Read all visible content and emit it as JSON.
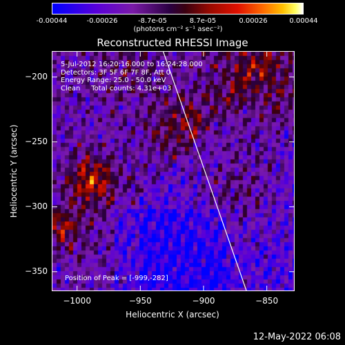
{
  "colorbar": {
    "ticks": [
      "-0.00044",
      "-0.00026",
      "-8.7e-05",
      "8.7e-05",
      "0.00026",
      "0.00044"
    ],
    "unit_label": "(photons cm⁻² s⁻¹ asec⁻²)"
  },
  "chart_data": {
    "type": "heatmap",
    "title": "Reconstructed RHESSI Image",
    "xlabel": "Heliocentric X (arcsec)",
    "ylabel": "Heliocentric Y (arcsec)",
    "xlim": [
      -1020,
      -828
    ],
    "ylim": [
      -365,
      -180
    ],
    "x_ticks": [
      -1000,
      -950,
      -900,
      -850
    ],
    "y_ticks": [
      -200,
      -250,
      -300,
      -350
    ],
    "limb_line": [
      [
        -932,
        -180
      ],
      [
        -866,
        -365
      ]
    ],
    "annotations": [
      "5-Jul-2012 16:20:16.000 to 16:24:28.000",
      "Detectors: 3F 5F 6F 7F 8F, Att 0",
      "Energy Range: 25.0 - 50.0 keV",
      "Clean     Total counts: 4.31e+03"
    ],
    "peak_label": "Position of Peak = [-999,-282]",
    "colormap_range": [
      -0.00044,
      0.00044
    ]
  },
  "colors": {
    "background": "#000000",
    "text": "#ffffff"
  },
  "footer": {
    "timestamp": "12-May-2022 06:08"
  }
}
